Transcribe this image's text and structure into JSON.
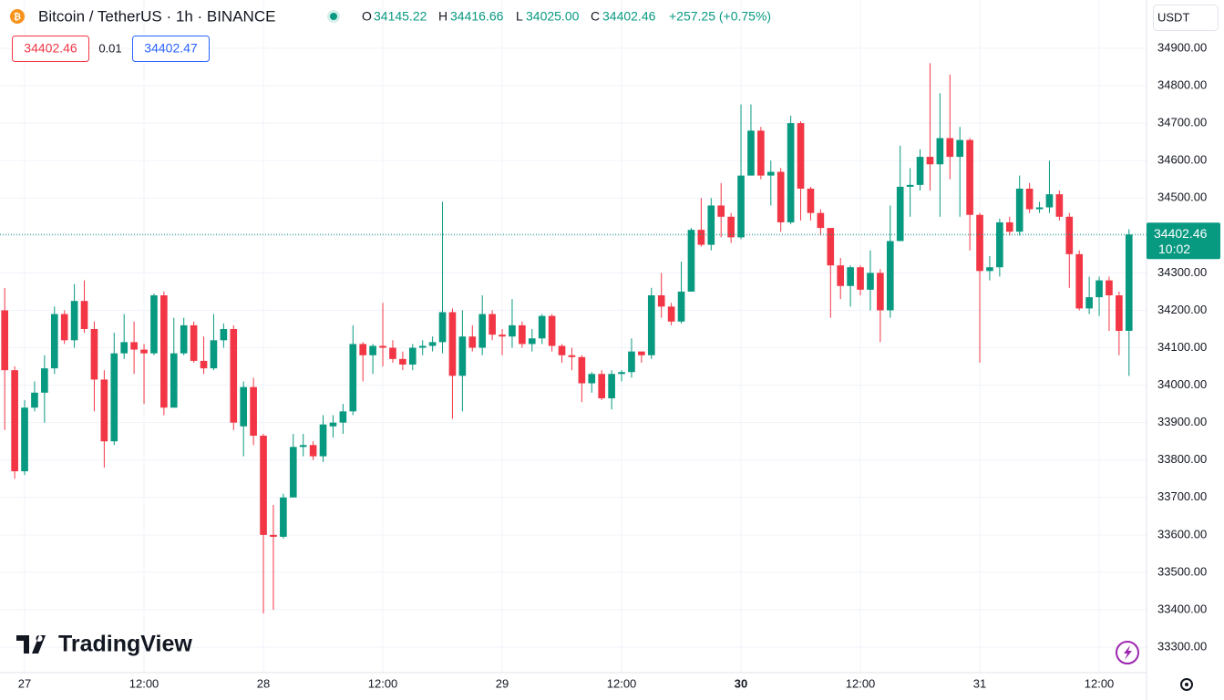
{
  "chart_data": {
    "type": "candlestick",
    "title": "Bitcoin / TetherUS · 1h · BINANCE",
    "ohlc_letters": [
      "O",
      "H",
      "L",
      "C"
    ],
    "header_values": [
      "34145.22",
      "34416.66",
      "34025.00",
      "34402.46"
    ],
    "change_label": "+257.25 (+0.75%)",
    "bid": "34402.46",
    "spread": "0.01",
    "ask": "34402.47",
    "currency": "USDT",
    "countdown": "10:02",
    "brand": "TradingView",
    "up_color": "#089981",
    "down_color": "#f23645",
    "grid": true,
    "xlim": [
      -0.476,
      114.76
    ],
    "ylim": [
      33232,
      35029
    ],
    "xticks": [
      {
        "value": 2,
        "label": "27"
      },
      {
        "value": 14,
        "label": "12:00"
      },
      {
        "value": 26,
        "label": "28"
      },
      {
        "value": 38,
        "label": "12:00"
      },
      {
        "value": 50,
        "label": "29"
      },
      {
        "value": 62,
        "label": "12:00"
      },
      {
        "value": 74,
        "label": "30"
      },
      {
        "value": 86,
        "label": "12:00"
      },
      {
        "value": 98,
        "label": "31"
      },
      {
        "value": 110,
        "label": "12:00"
      }
    ],
    "yticks": [
      {
        "value": 33300,
        "label": "33300.00"
      },
      {
        "value": 33400,
        "label": "33400.00"
      },
      {
        "value": 33500,
        "label": "33500.00"
      },
      {
        "value": 33600,
        "label": "33600.00"
      },
      {
        "value": 33700,
        "label": "33700.00"
      },
      {
        "value": 33800,
        "label": "33800.00"
      },
      {
        "value": 33900,
        "label": "33900.00"
      },
      {
        "value": 34000,
        "label": "34000.00"
      },
      {
        "value": 34100,
        "label": "34100.00"
      },
      {
        "value": 34200,
        "label": "34200.00"
      },
      {
        "value": 34300,
        "label": "34300.00"
      },
      {
        "value": 34400,
        "label": "34400.00"
      },
      {
        "value": 34500,
        "label": "34500.00"
      },
      {
        "value": 34600,
        "label": "34600.00"
      },
      {
        "value": 34700,
        "label": "34700.00"
      },
      {
        "value": 34800,
        "label": "34800.00"
      },
      {
        "value": 34900,
        "label": "34900.00"
      }
    ],
    "values": [
      [
        34200,
        34260,
        33880,
        34040
      ],
      [
        34040,
        34050,
        33750,
        33770
      ],
      [
        33770,
        33960,
        33760,
        33940
      ],
      [
        33940,
        34010,
        33930,
        33980
      ],
      [
        33980,
        34080,
        33900,
        34045
      ],
      [
        34045,
        34210,
        34030,
        34190
      ],
      [
        34190,
        34200,
        34110,
        34120
      ],
      [
        34120,
        34270,
        34100,
        34225
      ],
      [
        34225,
        34280,
        34140,
        34150
      ],
      [
        34150,
        34170,
        33930,
        34015
      ],
      [
        34015,
        34040,
        33780,
        33850
      ],
      [
        33850,
        34140,
        33840,
        34085
      ],
      [
        34085,
        34190,
        34070,
        34115
      ],
      [
        34115,
        34170,
        34030,
        34095
      ],
      [
        34095,
        34110,
        33950,
        34085
      ],
      [
        34085,
        34245,
        34080,
        34240
      ],
      [
        34240,
        34250,
        33920,
        33940
      ],
      [
        33940,
        34180,
        33940,
        34085
      ],
      [
        34085,
        34180,
        34080,
        34160
      ],
      [
        34160,
        34170,
        34060,
        34065
      ],
      [
        34065,
        34130,
        34030,
        34045
      ],
      [
        34045,
        34190,
        34040,
        34120
      ],
      [
        34120,
        34165,
        34100,
        34150
      ],
      [
        34150,
        34160,
        33880,
        33900
      ],
      [
        33890,
        34010,
        33810,
        33995
      ],
      [
        33995,
        34020,
        33840,
        33865
      ],
      [
        33865,
        33870,
        33390,
        33600
      ],
      [
        33600,
        33680,
        33400,
        33595
      ],
      [
        33595,
        33710,
        33590,
        33700
      ],
      [
        33700,
        33870,
        33700,
        33835
      ],
      [
        33835,
        33870,
        33810,
        33840
      ],
      [
        33840,
        33850,
        33800,
        33810
      ],
      [
        33810,
        33920,
        33795,
        33895
      ],
      [
        33890,
        33920,
        33860,
        33900
      ],
      [
        33900,
        33950,
        33870,
        33930
      ],
      [
        33930,
        34160,
        33920,
        34110
      ],
      [
        34110,
        34115,
        34010,
        34080
      ],
      [
        34080,
        34110,
        34030,
        34105
      ],
      [
        34105,
        34220,
        34050,
        34100
      ],
      [
        34100,
        34120,
        34060,
        34070
      ],
      [
        34070,
        34090,
        34040,
        34055
      ],
      [
        34055,
        34110,
        34040,
        34100
      ],
      [
        34100,
        34120,
        34080,
        34105
      ],
      [
        34105,
        34130,
        34090,
        34115
      ],
      [
        34115,
        34490,
        34085,
        34195
      ],
      [
        34195,
        34205,
        33910,
        34025
      ],
      [
        34025,
        34200,
        33930,
        34130
      ],
      [
        34130,
        34160,
        34090,
        34100
      ],
      [
        34100,
        34240,
        34080,
        34190
      ],
      [
        34190,
        34200,
        34120,
        34135
      ],
      [
        34135,
        34150,
        34080,
        34130
      ],
      [
        34130,
        34230,
        34100,
        34160
      ],
      [
        34160,
        34170,
        34100,
        34110
      ],
      [
        34110,
        34150,
        34090,
        34125
      ],
      [
        34125,
        34190,
        34110,
        34185
      ],
      [
        34185,
        34190,
        34090,
        34105
      ],
      [
        34105,
        34110,
        34060,
        34080
      ],
      [
        34080,
        34100,
        34040,
        34075
      ],
      [
        34075,
        34080,
        33955,
        34005
      ],
      [
        34005,
        34035,
        33980,
        34030
      ],
      [
        34030,
        34040,
        33960,
        33965
      ],
      [
        33965,
        34040,
        33935,
        34030
      ],
      [
        34030,
        34040,
        34010,
        34035
      ],
      [
        34035,
        34125,
        34020,
        34090
      ],
      [
        34090,
        34090,
        34060,
        34080
      ],
      [
        34080,
        34260,
        34070,
        34240
      ],
      [
        34240,
        34300,
        34180,
        34210
      ],
      [
        34210,
        34220,
        34160,
        34170
      ],
      [
        34170,
        34330,
        34165,
        34250
      ],
      [
        34250,
        34420,
        34250,
        34415
      ],
      [
        34415,
        34500,
        34370,
        34375
      ],
      [
        34375,
        34500,
        34360,
        34480
      ],
      [
        34480,
        34540,
        34395,
        34450
      ],
      [
        34450,
        34460,
        34380,
        34395
      ],
      [
        34395,
        34750,
        34390,
        34560
      ],
      [
        34560,
        34750,
        34560,
        34680
      ],
      [
        34680,
        34690,
        34550,
        34560
      ],
      [
        34560,
        34600,
        34480,
        34570
      ],
      [
        34570,
        34580,
        34410,
        34435
      ],
      [
        34435,
        34720,
        34430,
        34700
      ],
      [
        34700,
        34705,
        34440,
        34525
      ],
      [
        34525,
        34530,
        34440,
        34460
      ],
      [
        34460,
        34470,
        34400,
        34420
      ],
      [
        34420,
        34420,
        34180,
        34320
      ],
      [
        34320,
        34340,
        34230,
        34265
      ],
      [
        34265,
        34320,
        34210,
        34315
      ],
      [
        34315,
        34320,
        34240,
        34255
      ],
      [
        34255,
        34360,
        34200,
        34300
      ],
      [
        34300,
        34310,
        34115,
        34200
      ],
      [
        34200,
        34480,
        34180,
        34385
      ],
      [
        34385,
        34640,
        34385,
        34530
      ],
      [
        34530,
        34580,
        34450,
        34535
      ],
      [
        34535,
        34630,
        34520,
        34610
      ],
      [
        34610,
        34860,
        34520,
        34590
      ],
      [
        34590,
        34780,
        34450,
        34660
      ],
      [
        34660,
        34830,
        34550,
        34610
      ],
      [
        34610,
        34690,
        34450,
        34655
      ],
      [
        34655,
        34660,
        34360,
        34455
      ],
      [
        34455,
        34460,
        34060,
        34305
      ],
      [
        34305,
        34345,
        34280,
        34315
      ],
      [
        34315,
        34445,
        34290,
        34435
      ],
      [
        34435,
        34450,
        34400,
        34410
      ],
      [
        34410,
        34560,
        34400,
        34525
      ],
      [
        34525,
        34540,
        34460,
        34470
      ],
      [
        34470,
        34490,
        34460,
        34475
      ],
      [
        34475,
        34600,
        34460,
        34510
      ],
      [
        34510,
        34520,
        34440,
        34450
      ],
      [
        34450,
        34460,
        34260,
        34350
      ],
      [
        34350,
        34360,
        34200,
        34205
      ],
      [
        34205,
        34290,
        34190,
        34235
      ],
      [
        34235,
        34290,
        34185,
        34280
      ],
      [
        34280,
        34290,
        34145,
        34240
      ],
      [
        34240,
        34250,
        34080,
        34145
      ],
      [
        34145.22,
        34416.66,
        34025.0,
        34402.46
      ]
    ]
  }
}
